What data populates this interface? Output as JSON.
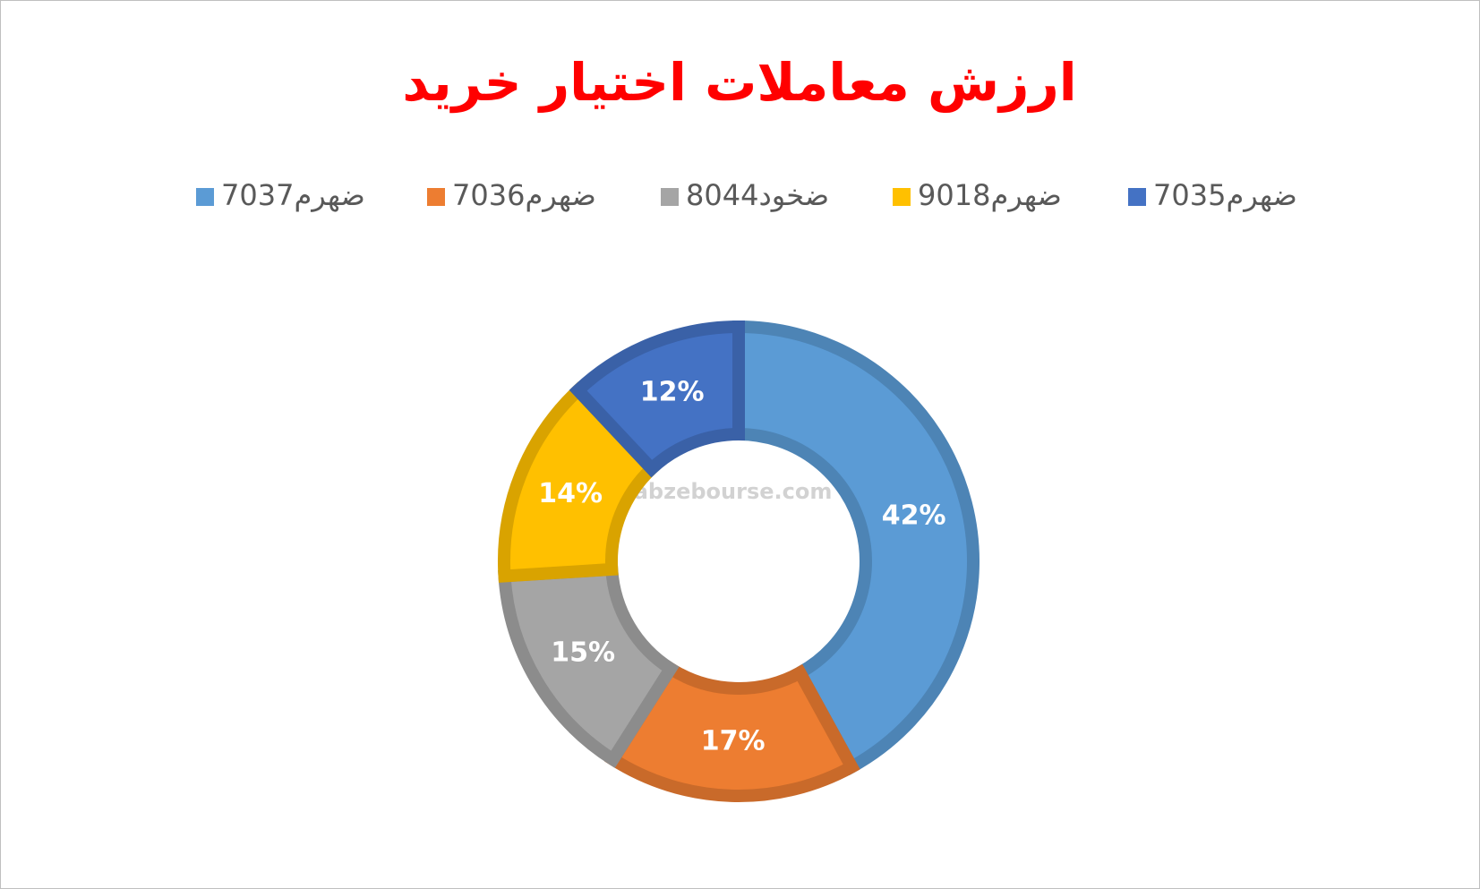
{
  "chart_data": {
    "type": "donut",
    "title": "ارزش معاملات اختیار خرید",
    "categories": [
      "ضهرم7037",
      "ضهرم7036",
      "ضخود8044",
      "ضهرم9018",
      "ضهرم7035"
    ],
    "values": [
      42,
      17,
      15,
      14,
      12
    ],
    "value_labels": [
      "42%",
      "17%",
      "15%",
      "14%",
      "12%"
    ],
    "colors": [
      "#5b9bd5",
      "#ed7d31",
      "#a5a5a5",
      "#ffc000",
      "#4472c4"
    ],
    "legend": "top",
    "watermark": "nabzebourse.com"
  }
}
